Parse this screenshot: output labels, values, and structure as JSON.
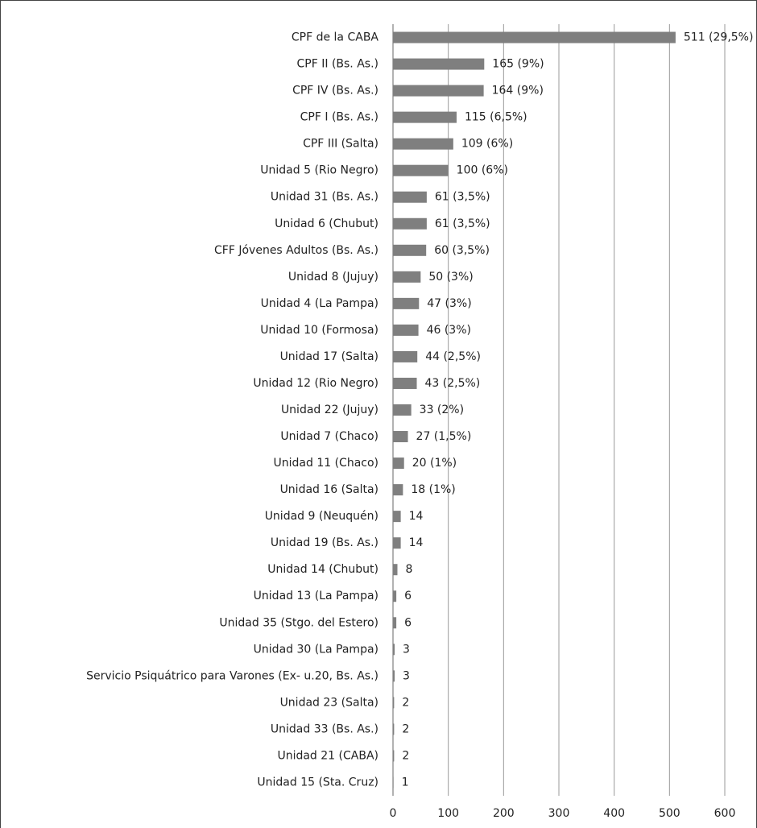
{
  "chart_data": {
    "type": "bar",
    "orientation": "horizontal",
    "categories": [
      "CPF de la CABA",
      "CPF II (Bs. As.)",
      "CPF IV (Bs. As.)",
      "CPF I (Bs. As.)",
      "CPF III (Salta)",
      "Unidad 5 (Rio Negro)",
      "Unidad 31 (Bs. As.)",
      "Unidad 6 (Chubut)",
      "CFF Jóvenes Adultos (Bs. As.)",
      "Unidad 8 (Jujuy)",
      "Unidad 4 (La Pampa)",
      "Unidad 10 (Formosa)",
      "Unidad 17 (Salta)",
      "Unidad 12 (Rio Negro)",
      "Unidad 22  (Jujuy)",
      "Unidad 7 (Chaco)",
      "Unidad 11 (Chaco)",
      "Unidad 16 (Salta)",
      "Unidad 9 (Neuquén)",
      "Unidad 19 (Bs. As.)",
      "Unidad 14 (Chubut)",
      "Unidad 13 (La Pampa)",
      "Unidad 35 (Stgo. del Estero)",
      "Unidad 30 (La Pampa)",
      "Servicio Psiquátrico para Varones (Ex- u.20, Bs. As.)",
      "Unidad 23 (Salta)",
      "Unidad 33 (Bs. As.)",
      "Unidad 21 (CABA)",
      "Unidad 15 (Sta. Cruz)"
    ],
    "values": [
      511,
      165,
      164,
      115,
      109,
      100,
      61,
      61,
      60,
      50,
      47,
      46,
      44,
      43,
      33,
      27,
      20,
      18,
      14,
      14,
      8,
      6,
      6,
      3,
      3,
      2,
      2,
      2,
      1
    ],
    "value_labels": [
      "511 (29,5%)",
      "165 (9%)",
      "164 (9%)",
      "115 (6,5%)",
      "109 (6%)",
      "100 (6%)",
      "61 (3,5%)",
      "61 (3,5%)",
      "60 (3,5%)",
      "50 (3%)",
      "47 (3%)",
      "46 (3%)",
      "44 (2,5%)",
      "43 (2,5%)",
      "33 (2%)",
      "27 (1,5%)",
      "20 (1%)",
      "18 (1%)",
      "14",
      "14",
      "8",
      "6",
      "6",
      "3",
      "3",
      "2",
      "2",
      "2",
      "1"
    ],
    "color": "#7f7f7f",
    "xlim": [
      0,
      600
    ],
    "xticks": [
      0,
      100,
      200,
      300,
      400,
      500,
      600
    ],
    "grid": true
  }
}
